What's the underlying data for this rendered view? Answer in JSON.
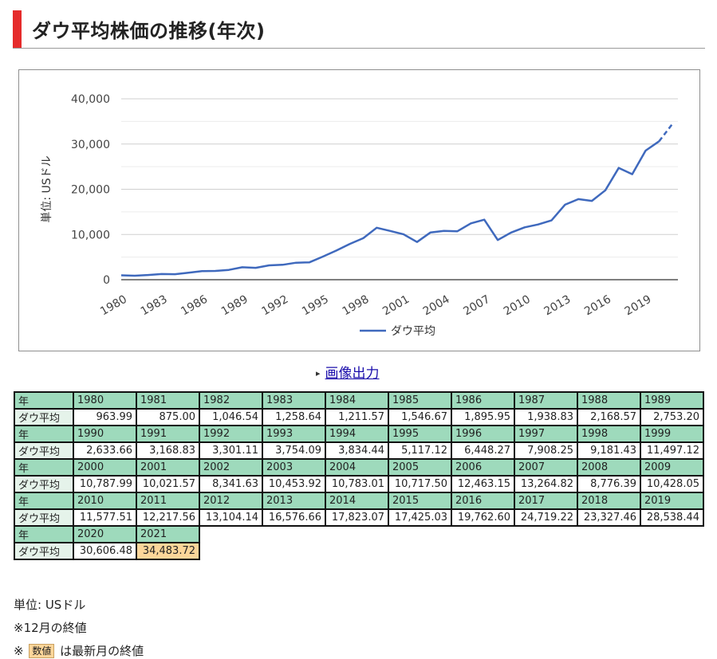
{
  "header": {
    "title": "ダウ平均株価の推移(年次)"
  },
  "export": {
    "label": "画像出力"
  },
  "colors": {
    "line": "#3f69bd",
    "header_cell": "#9edabc",
    "latest_cell": "#fdd69a",
    "accent": "#e52b2b"
  },
  "chart_data": {
    "type": "line",
    "ylabel": "単位: USドル",
    "ylim": [
      0,
      40000
    ],
    "yticks": [
      "0",
      "10,000",
      "20,000",
      "30,000",
      "40,000"
    ],
    "xticks": [
      "1980",
      "1983",
      "1986",
      "1989",
      "1992",
      "1995",
      "1998",
      "2001",
      "2004",
      "2007",
      "2010",
      "2013",
      "2016",
      "2019"
    ],
    "legend": "bottom",
    "grid": true,
    "latest_segment_dashed": true,
    "series": [
      {
        "name": "ダウ平均",
        "x": [
          1980,
          1981,
          1982,
          1983,
          1984,
          1985,
          1986,
          1987,
          1988,
          1989,
          1990,
          1991,
          1992,
          1993,
          1994,
          1995,
          1996,
          1997,
          1998,
          1999,
          2000,
          2001,
          2002,
          2003,
          2004,
          2005,
          2006,
          2007,
          2008,
          2009,
          2010,
          2011,
          2012,
          2013,
          2014,
          2015,
          2016,
          2017,
          2018,
          2019,
          2020,
          2021
        ],
        "values": [
          963.99,
          875.0,
          1046.54,
          1258.64,
          1211.57,
          1546.67,
          1895.95,
          1938.83,
          2168.57,
          2753.2,
          2633.66,
          3168.83,
          3301.11,
          3754.09,
          3834.44,
          5117.12,
          6448.27,
          7908.25,
          9181.43,
          11497.12,
          10787.99,
          10021.57,
          8341.63,
          10453.92,
          10783.01,
          10717.5,
          12463.15,
          13264.82,
          8776.39,
          10428.05,
          11577.51,
          12217.56,
          13104.14,
          16576.66,
          17823.07,
          17425.03,
          19762.6,
          24719.22,
          23327.46,
          28538.44,
          30606.48,
          34483.72
        ]
      }
    ]
  },
  "table": {
    "year_label": "年",
    "value_label": "ダウ平均",
    "blocks": [
      {
        "years": [
          "1980",
          "1981",
          "1982",
          "1983",
          "1984",
          "1985",
          "1986",
          "1987",
          "1988",
          "1989"
        ],
        "values": [
          "963.99",
          "875.00",
          "1,046.54",
          "1,258.64",
          "1,211.57",
          "1,546.67",
          "1,895.95",
          "1,938.83",
          "2,168.57",
          "2,753.20"
        ]
      },
      {
        "years": [
          "1990",
          "1991",
          "1992",
          "1993",
          "1994",
          "1995",
          "1996",
          "1997",
          "1998",
          "1999"
        ],
        "values": [
          "2,633.66",
          "3,168.83",
          "3,301.11",
          "3,754.09",
          "3,834.44",
          "5,117.12",
          "6,448.27",
          "7,908.25",
          "9,181.43",
          "11,497.12"
        ]
      },
      {
        "years": [
          "2000",
          "2001",
          "2002",
          "2003",
          "2004",
          "2005",
          "2006",
          "2007",
          "2008",
          "2009"
        ],
        "values": [
          "10,787.99",
          "10,021.57",
          "8,341.63",
          "10,453.92",
          "10,783.01",
          "10,717.50",
          "12,463.15",
          "13,264.82",
          "8,776.39",
          "10,428.05"
        ]
      },
      {
        "years": [
          "2010",
          "2011",
          "2012",
          "2013",
          "2014",
          "2015",
          "2016",
          "2017",
          "2018",
          "2019"
        ],
        "values": [
          "11,577.51",
          "12,217.56",
          "13,104.14",
          "16,576.66",
          "17,823.07",
          "17,425.03",
          "19,762.60",
          "24,719.22",
          "23,327.46",
          "28,538.44"
        ]
      },
      {
        "years": [
          "2020",
          "2021"
        ],
        "values": [
          "30,606.48",
          "34,483.72"
        ]
      }
    ],
    "latest_value": "34,483.72"
  },
  "notes": {
    "unit": "単位: USドル",
    "december": "※12月の終値",
    "latest_prefix": "※",
    "latest_badge": "数値",
    "latest_suffix": "は最新月の終値"
  }
}
